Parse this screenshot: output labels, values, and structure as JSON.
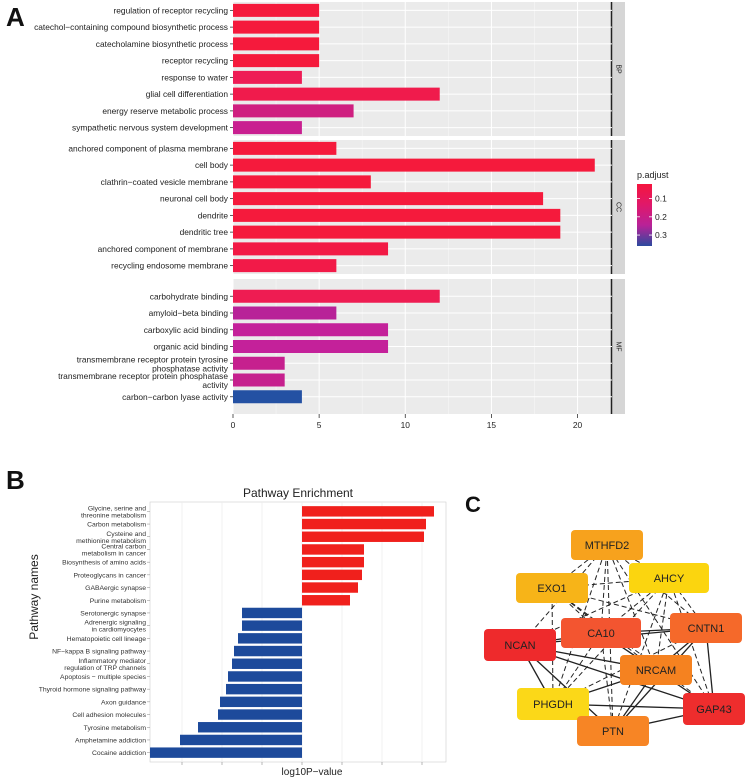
{
  "figure": {
    "panel_a_label": "A",
    "panel_b_label": "B",
    "panel_c_label": "C"
  },
  "chart_data": [
    {
      "type": "bar",
      "orientation": "horizontal",
      "panel": "A",
      "xlim": [
        0,
        22
      ],
      "xticks": [
        0,
        5,
        10,
        15,
        20
      ],
      "grid": true,
      "legend_position": "right",
      "legend": {
        "title": "p.adjust",
        "ticks": [
          "0.1",
          "0.2",
          "0.3"
        ],
        "tick_values": [
          0.1,
          0.2,
          0.3
        ],
        "range": [
          0.02,
          0.36
        ],
        "colors": [
          "#f5153e",
          "#e0186a",
          "#b82298",
          "#2c4a9e"
        ]
      },
      "facets": [
        {
          "name": "BP",
          "categories": [
            "regulation of receptor recycling",
            "catechol−containing compound biosynthetic process",
            "catecholamine biosynthetic process",
            "receptor recycling",
            "response to water",
            "glial cell differentiation",
            "energy reserve metabolic process",
            "sympathetic nervous system development"
          ],
          "values": [
            5,
            5,
            5,
            5,
            4,
            12,
            7,
            4
          ],
          "p_adjust": [
            0.04,
            0.05,
            0.05,
            0.05,
            0.07,
            0.07,
            0.16,
            0.18
          ],
          "colors": [
            "#f51a3c",
            "#f51a3c",
            "#f51a3c",
            "#f51a3c",
            "#ee1c55",
            "#f01b4c",
            "#cf1f80",
            "#c91f90"
          ]
        },
        {
          "name": "CC",
          "categories": [
            "anchored component of plasma membrane",
            "cell body",
            "clathrin−coated vesicle membrane",
            "neuronal cell body",
            "dendrite",
            "dendritic tree",
            "anchored component of membrane",
            "recycling endosome membrane"
          ],
          "values": [
            6,
            21,
            8,
            18,
            19,
            19,
            9,
            6
          ],
          "p_adjust": [
            0.04,
            0.04,
            0.04,
            0.04,
            0.04,
            0.04,
            0.05,
            0.06
          ],
          "colors": [
            "#f51a3c",
            "#f51a3c",
            "#f51a3c",
            "#f51a3c",
            "#f51a3c",
            "#f51a3c",
            "#f21a45",
            "#f21a48"
          ]
        },
        {
          "name": "MF",
          "categories": [
            "carbohydrate binding",
            "amyloid−beta binding",
            "carboxylic acid binding",
            "organic acid binding",
            "transmembrane receptor protein tyrosine phosphatase activity",
            "transmembrane receptor protein phosphatase activity",
            "carbon−carbon lyase activity"
          ],
          "display_lines": [
            [
              "carbohydrate binding"
            ],
            [
              "amyloid−beta binding"
            ],
            [
              "carboxylic acid binding"
            ],
            [
              "organic acid binding"
            ],
            [
              "transmembrane receptor protein tyrosine",
              "phosphatase activity"
            ],
            [
              "transmembrane receptor protein phosphatase",
              "activity"
            ],
            [
              "carbon−carbon lyase activity"
            ]
          ],
          "values": [
            12,
            6,
            9,
            9,
            3,
            3,
            4
          ],
          "p_adjust": [
            0.06,
            0.22,
            0.19,
            0.19,
            0.17,
            0.17,
            0.35
          ],
          "colors": [
            "#ee1c52",
            "#b82298",
            "#c4219a",
            "#c4219a",
            "#c6208e",
            "#c6208e",
            "#2451a3"
          ]
        }
      ]
    },
    {
      "type": "bar",
      "orientation": "horizontal",
      "panel": "B",
      "title": "Pathway Enrichment",
      "xlabel": "log10P−value",
      "ylabel": "Pathway names",
      "xlim": [
        -3.8,
        3.6
      ],
      "grid": true,
      "categories": [
        [
          "Glycine, serine and",
          "threonine metabolism"
        ],
        [
          "Carbon metabolism"
        ],
        [
          "Cysteine and",
          "methionine metabolism"
        ],
        [
          "Central carbon",
          "metabolism in cancer"
        ],
        [
          "Biosynthesis of amino acids"
        ],
        [
          "Proteoglycans in cancer"
        ],
        [
          "GABAergic synapse"
        ],
        [
          "Purine metabolism"
        ],
        [
          "Serotonergic synapse"
        ],
        [
          "Adrenergic signaling",
          "in cardiomyocytes"
        ],
        [
          "Hematopoietic cell lineage"
        ],
        [
          "NF−kappa B signaling pathway"
        ],
        [
          "Inflammatory mediator",
          "regulation of TRP channels"
        ],
        [
          "Apoptosis − multiple species"
        ],
        [
          "Thyroid hormone signaling pathway"
        ],
        [
          "Axon guidance"
        ],
        [
          "Cell adhesion molecules"
        ],
        [
          "Tyrosine metabolism"
        ],
        [
          "Amphetamine addiction"
        ],
        [
          "Cocaine addiction"
        ]
      ],
      "values": [
        3.3,
        3.1,
        3.05,
        1.55,
        1.55,
        1.5,
        1.4,
        1.2,
        -1.5,
        -1.5,
        -1.6,
        -1.7,
        -1.75,
        -1.85,
        -1.9,
        -2.05,
        -2.1,
        -2.6,
        -3.05,
        -3.8
      ],
      "colors": {
        "positive": "#f0201c",
        "negative": "#1d4a9b"
      }
    }
  ],
  "network": {
    "panel": "C",
    "nodes": [
      {
        "id": "MTHFD2",
        "label": "MTHFD2",
        "color": "#f7a21d"
      },
      {
        "id": "AHCY",
        "label": "AHCY",
        "color": "#fbd50f"
      },
      {
        "id": "EXO1",
        "label": "EXO1",
        "color": "#f7b418"
      },
      {
        "id": "CNTN1",
        "label": "CNTN1",
        "color": "#f5692a"
      },
      {
        "id": "CA10",
        "label": "CA10",
        "color": "#f35530"
      },
      {
        "id": "NCAN",
        "label": "NCAN",
        "color": "#ee2a2c"
      },
      {
        "id": "NRCAM",
        "label": "NRCAM",
        "color": "#f58220"
      },
      {
        "id": "PHGDH",
        "label": "PHGDH",
        "color": "#fbd818"
      },
      {
        "id": "GAP43",
        "label": "GAP43",
        "color": "#ee2d2d"
      },
      {
        "id": "PTN",
        "label": "PTN",
        "color": "#f78525"
      }
    ],
    "edges": [
      {
        "source": "MTHFD2",
        "target": "EXO1",
        "style": "dashed"
      },
      {
        "source": "MTHFD2",
        "target": "AHCY",
        "style": "dashed"
      },
      {
        "source": "MTHFD2",
        "target": "CA10",
        "style": "dashed"
      },
      {
        "source": "MTHFD2",
        "target": "NRCAM",
        "style": "dashed"
      },
      {
        "source": "MTHFD2",
        "target": "PHGDH",
        "style": "dashed"
      },
      {
        "source": "MTHFD2",
        "target": "PTN",
        "style": "dashed"
      },
      {
        "source": "MTHFD2",
        "target": "CNTN1",
        "style": "dashed"
      },
      {
        "source": "MTHFD2",
        "target": "NCAN",
        "style": "dashed"
      },
      {
        "source": "MTHFD2",
        "target": "GAP43",
        "style": "dashed"
      },
      {
        "source": "EXO1",
        "target": "AHCY",
        "style": "dashed"
      },
      {
        "source": "EXO1",
        "target": "CA10",
        "style": "dashed"
      },
      {
        "source": "EXO1",
        "target": "CNTN1",
        "style": "dashed"
      },
      {
        "source": "EXO1",
        "target": "NRCAM",
        "style": "dashed"
      },
      {
        "source": "EXO1",
        "target": "PHGDH",
        "style": "dashed"
      },
      {
        "source": "EXO1",
        "target": "GAP43",
        "style": "dashed"
      },
      {
        "source": "AHCY",
        "target": "CA10",
        "style": "dashed"
      },
      {
        "source": "AHCY",
        "target": "NCAN",
        "style": "dashed"
      },
      {
        "source": "AHCY",
        "target": "PHGDH",
        "style": "dashed"
      },
      {
        "source": "AHCY",
        "target": "NRCAM",
        "style": "dashed"
      },
      {
        "source": "AHCY",
        "target": "PTN",
        "style": "dashed"
      },
      {
        "source": "AHCY",
        "target": "GAP43",
        "style": "dashed"
      },
      {
        "source": "AHCY",
        "target": "CNTN1",
        "style": "dashed"
      },
      {
        "source": "PHGDH",
        "target": "CA10",
        "style": "dashed"
      },
      {
        "source": "PHGDH",
        "target": "CNTN1",
        "style": "dashed"
      },
      {
        "source": "PHGDH",
        "target": "PTN",
        "style": "dashed"
      },
      {
        "source": "CA10",
        "target": "GAP43",
        "style": "dashed"
      },
      {
        "source": "CA10",
        "target": "PTN",
        "style": "dashed"
      },
      {
        "source": "NCAN",
        "target": "CA10",
        "style": "solid"
      },
      {
        "source": "NCAN",
        "target": "CNTN1",
        "style": "solid"
      },
      {
        "source": "NCAN",
        "target": "NRCAM",
        "style": "solid"
      },
      {
        "source": "NCAN",
        "target": "GAP43",
        "style": "solid"
      },
      {
        "source": "NCAN",
        "target": "PTN",
        "style": "solid"
      },
      {
        "source": "NCAN",
        "target": "PHGDH",
        "style": "solid"
      },
      {
        "source": "CA10",
        "target": "CNTN1",
        "style": "solid"
      },
      {
        "source": "CA10",
        "target": "NRCAM",
        "style": "solid"
      },
      {
        "source": "CNTN1",
        "target": "NRCAM",
        "style": "solid"
      },
      {
        "source": "CNTN1",
        "target": "GAP43",
        "style": "solid"
      },
      {
        "source": "CNTN1",
        "target": "PTN",
        "style": "solid"
      },
      {
        "source": "NRCAM",
        "target": "GAP43",
        "style": "solid"
      },
      {
        "source": "NRCAM",
        "target": "PTN",
        "style": "solid"
      },
      {
        "source": "NRCAM",
        "target": "PHGDH",
        "style": "solid"
      },
      {
        "source": "GAP43",
        "target": "PTN",
        "style": "solid"
      },
      {
        "source": "PHGDH",
        "target": "GAP43",
        "style": "solid"
      }
    ]
  }
}
